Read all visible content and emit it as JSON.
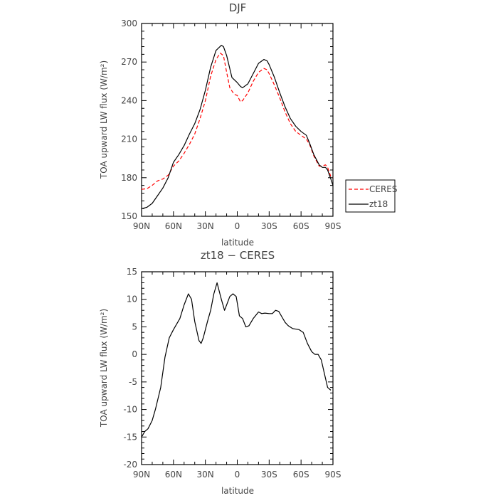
{
  "chart_data": [
    {
      "type": "line",
      "title": "DJF",
      "xlabel": "latitude",
      "ylabel": "TOA upward LW flux (W/m²)",
      "ylim": [
        150,
        300
      ],
      "yticks": [
        150,
        180,
        210,
        240,
        270,
        300
      ],
      "xlim": [
        90,
        -90
      ],
      "x_tick_values": [
        90,
        60,
        30,
        0,
        -30,
        -60,
        -90
      ],
      "x_tick_labels": [
        "90N",
        "60N",
        "30N",
        "0",
        "30S",
        "60S",
        "90S"
      ],
      "grid": false,
      "legend": "right",
      "series": [
        {
          "name": "CERES",
          "color": "#ff0000",
          "dash": "dashed",
          "points": [
            [
              90,
              171
            ],
            [
              85,
              171.5
            ],
            [
              80,
              174
            ],
            [
              75,
              177.5
            ],
            [
              70,
              179
            ],
            [
              65,
              182
            ],
            [
              60,
              189
            ],
            [
              55,
              193
            ],
            [
              50,
              199
            ],
            [
              45,
              206
            ],
            [
              40,
              214
            ],
            [
              35,
              226
            ],
            [
              30,
              240
            ],
            [
              25,
              259
            ],
            [
              20,
              272
            ],
            [
              16,
              277
            ],
            [
              13,
              275
            ],
            [
              10,
              262
            ],
            [
              7,
              250
            ],
            [
              3,
              245
            ],
            [
              0,
              244
            ],
            [
              -3,
              239
            ],
            [
              -5,
              240
            ],
            [
              -10,
              246
            ],
            [
              -15,
              255
            ],
            [
              -20,
              262
            ],
            [
              -25,
              265
            ],
            [
              -28,
              264
            ],
            [
              -30,
              261
            ],
            [
              -35,
              252
            ],
            [
              -40,
              242
            ],
            [
              -45,
              231
            ],
            [
              -50,
              222
            ],
            [
              -55,
              216
            ],
            [
              -60,
              213
            ],
            [
              -65,
              210
            ],
            [
              -68,
              206
            ],
            [
              -72,
              197
            ],
            [
              -77,
              189
            ],
            [
              -80,
              189
            ],
            [
              -83,
              190
            ],
            [
              -85,
              188
            ],
            [
              -88,
              181
            ],
            [
              -90,
              180
            ]
          ]
        },
        {
          "name": "zt18",
          "color": "#000000",
          "dash": "solid",
          "points": [
            [
              90,
              156
            ],
            [
              85,
              157
            ],
            [
              80,
              160
            ],
            [
              75,
              166
            ],
            [
              70,
              172
            ],
            [
              65,
              180
            ],
            [
              60,
              192
            ],
            [
              55,
              198
            ],
            [
              50,
              205
            ],
            [
              45,
              214
            ],
            [
              40,
              222
            ],
            [
              35,
              233
            ],
            [
              30,
              248
            ],
            [
              25,
              266
            ],
            [
              20,
              279
            ],
            [
              15,
              283
            ],
            [
              13,
              282
            ],
            [
              10,
              275
            ],
            [
              5,
              258
            ],
            [
              0,
              254
            ],
            [
              -3,
              251
            ],
            [
              -5,
              250
            ],
            [
              -10,
              253
            ],
            [
              -15,
              261
            ],
            [
              -20,
              269
            ],
            [
              -25,
              272
            ],
            [
              -28,
              271
            ],
            [
              -30,
              268
            ],
            [
              -35,
              258
            ],
            [
              -40,
              246
            ],
            [
              -45,
              235
            ],
            [
              -50,
              226
            ],
            [
              -55,
              220
            ],
            [
              -60,
              216
            ],
            [
              -65,
              213
            ],
            [
              -68,
              207
            ],
            [
              -72,
              198
            ],
            [
              -77,
              190
            ],
            [
              -80,
              188
            ],
            [
              -83,
              188
            ],
            [
              -85,
              186
            ],
            [
              -88,
              179
            ],
            [
              -90,
              174
            ]
          ]
        }
      ]
    },
    {
      "type": "line",
      "title": "zt18 − CERES",
      "xlabel": "latitude",
      "ylabel": "TOA upward LW flux (W/m²)",
      "ylim": [
        -20,
        15
      ],
      "yticks": [
        -20,
        -15,
        -10,
        -5,
        0,
        5,
        10,
        15
      ],
      "xlim": [
        90,
        -90
      ],
      "x_tick_values": [
        90,
        60,
        30,
        0,
        -30,
        -60,
        -90
      ],
      "x_tick_labels": [
        "90N",
        "60N",
        "30N",
        "0",
        "30S",
        "60S",
        "90S"
      ],
      "grid": false,
      "series": [
        {
          "color": "#000000",
          "dash": "solid",
          "points": [
            [
              90,
              -15
            ],
            [
              87,
              -14
            ],
            [
              84,
              -13.5
            ],
            [
              80,
              -12
            ],
            [
              77,
              -10
            ],
            [
              72,
              -6
            ],
            [
              68,
              -0.5
            ],
            [
              64,
              3
            ],
            [
              60,
              4.5
            ],
            [
              57,
              5.5
            ],
            [
              54,
              6.5
            ],
            [
              50,
              9
            ],
            [
              46,
              11
            ],
            [
              43,
              10
            ],
            [
              40,
              6
            ],
            [
              36,
              2.5
            ],
            [
              34,
              2
            ],
            [
              32,
              3
            ],
            [
              28,
              6
            ],
            [
              25,
              8
            ],
            [
              22,
              11
            ],
            [
              19,
              13
            ],
            [
              15,
              10
            ],
            [
              12,
              8
            ],
            [
              10,
              9
            ],
            [
              7,
              10.5
            ],
            [
              4,
              11
            ],
            [
              1,
              10.5
            ],
            [
              -2,
              7
            ],
            [
              -5,
              6.5
            ],
            [
              -8,
              5
            ],
            [
              -11,
              5.2
            ],
            [
              -15,
              6.5
            ],
            [
              -20,
              7.7
            ],
            [
              -23,
              7.4
            ],
            [
              -26,
              7.5
            ],
            [
              -30,
              7.4
            ],
            [
              -33,
              7.4
            ],
            [
              -36,
              8
            ],
            [
              -39,
              7.8
            ],
            [
              -42,
              6.8
            ],
            [
              -45,
              5.8
            ],
            [
              -48,
              5.2
            ],
            [
              -52,
              4.7
            ],
            [
              -58,
              4.5
            ],
            [
              -62,
              4
            ],
            [
              -66,
              2
            ],
            [
              -70,
              0.5
            ],
            [
              -73,
              0
            ],
            [
              -76,
              0
            ],
            [
              -79,
              -1
            ],
            [
              -82,
              -3.5
            ],
            [
              -85,
              -6
            ],
            [
              -88,
              -6.5
            ]
          ]
        }
      ]
    }
  ]
}
